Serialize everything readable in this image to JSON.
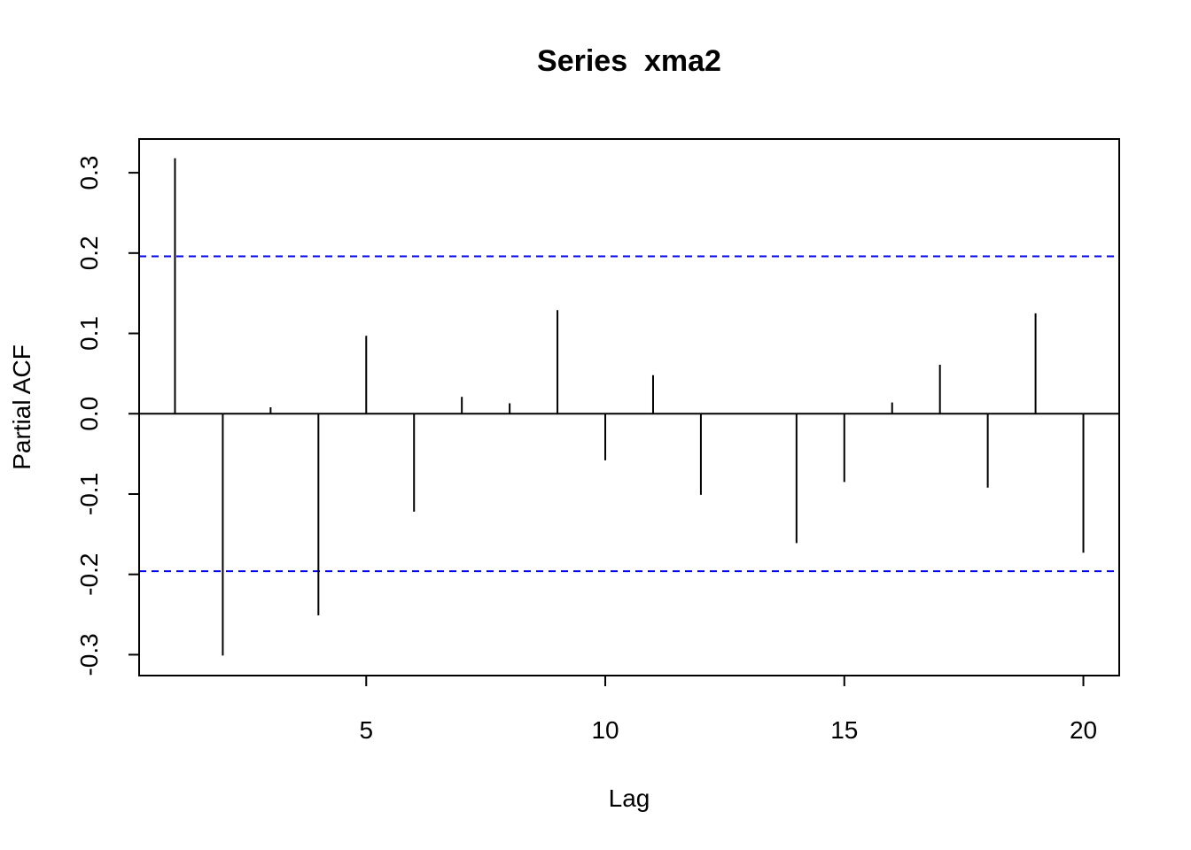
{
  "chart_data": {
    "type": "bar",
    "title": "Series  xma2",
    "xlabel": "Lag",
    "ylabel": "Partial ACF",
    "xlim": [
      0.25,
      20.75
    ],
    "ylim": [
      -0.326,
      0.342
    ],
    "xticks": [
      5,
      10,
      15,
      20
    ],
    "xtick_labels": [
      "5",
      "10",
      "15",
      "20"
    ],
    "yticks": [
      -0.3,
      -0.2,
      -0.1,
      0.0,
      0.1,
      0.2,
      0.3
    ],
    "ytick_labels": [
      "-0.3",
      "-0.2",
      "-0.1",
      "0.0",
      "0.1",
      "0.2",
      "0.3"
    ],
    "lags": [
      1,
      2,
      3,
      4,
      5,
      6,
      7,
      8,
      9,
      10,
      11,
      12,
      13,
      14,
      15,
      16,
      17,
      18,
      19,
      20
    ],
    "values": [
      0.318,
      -0.301,
      0.008,
      -0.251,
      0.097,
      -0.122,
      0.021,
      0.013,
      0.129,
      -0.058,
      0.048,
      -0.101,
      0.0,
      -0.161,
      -0.085,
      0.014,
      0.061,
      -0.092,
      0.125,
      -0.173
    ],
    "confidence_limit": 0.196,
    "confidence_color": "#0000ff",
    "bar_color": "#000000",
    "grid": false
  }
}
